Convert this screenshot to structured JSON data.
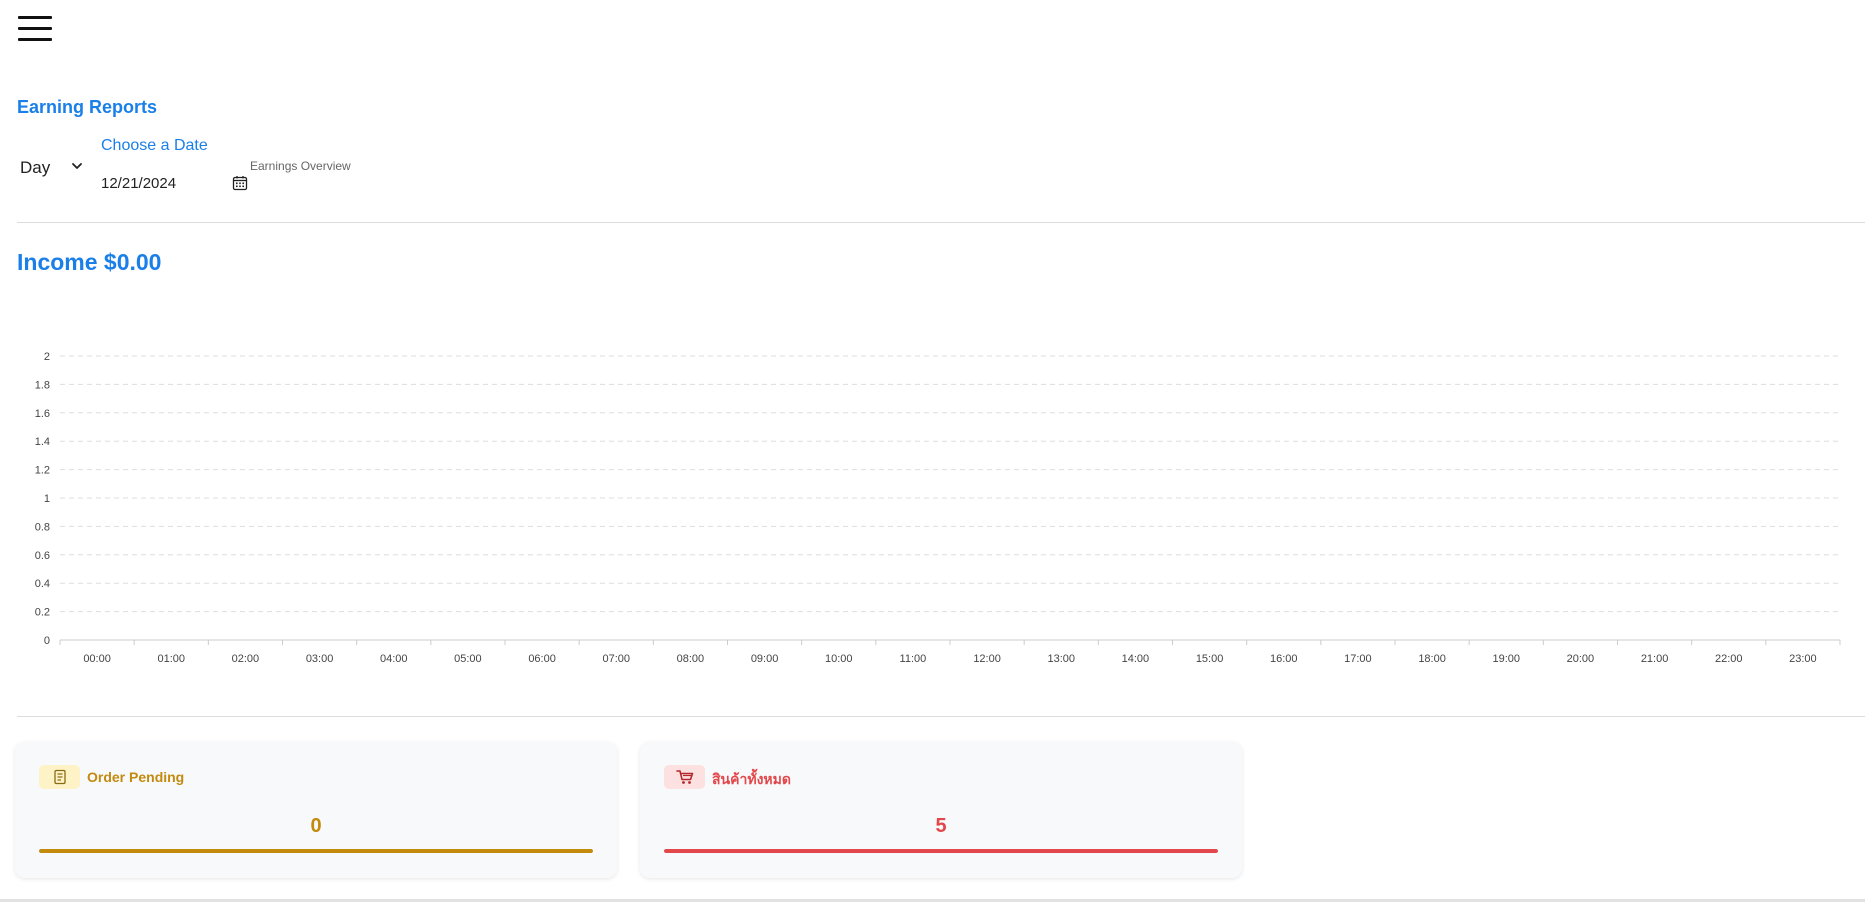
{
  "header": {
    "menu_icon": "hamburger-menu-icon"
  },
  "report": {
    "title": "Earning Reports",
    "period_select": {
      "value": "Day",
      "icon": "chevron-down-icon"
    },
    "date_picker": {
      "label": "Choose a Date",
      "value": "12/21/2024",
      "icon": "calendar-icon"
    },
    "overview_label": "Earnings Overview"
  },
  "income": {
    "text": "Income $0.00"
  },
  "chart_data": {
    "type": "bar",
    "categories": [
      "00:00",
      "01:00",
      "02:00",
      "03:00",
      "04:00",
      "05:00",
      "06:00",
      "07:00",
      "08:00",
      "09:00",
      "10:00",
      "11:00",
      "12:00",
      "13:00",
      "14:00",
      "15:00",
      "16:00",
      "17:00",
      "18:00",
      "19:00",
      "20:00",
      "21:00",
      "22:00",
      "23:00"
    ],
    "series": [
      {
        "values": [
          0,
          0,
          0,
          0,
          0,
          0,
          0,
          0,
          0,
          0,
          0,
          0,
          0,
          0,
          0,
          0,
          0,
          0,
          0,
          0,
          0,
          0,
          0,
          0
        ]
      }
    ],
    "y_ticks": [
      "0",
      "0.2",
      "0.4",
      "0.6",
      "0.8",
      "1",
      "1.2",
      "1.4",
      "1.6",
      "1.8",
      "2"
    ],
    "ylim": [
      0,
      2
    ],
    "grid": true,
    "grid_style": "dashed horizontal",
    "legend": "none"
  },
  "cards": [
    {
      "title": "Order Pending",
      "value": "0",
      "icon": "order-list-icon",
      "color": "#c38a0e",
      "progress": 1.0
    },
    {
      "title": "สินค้าทั้งหมด",
      "value": "5",
      "icon": "shopping-cart-icon",
      "color": "#e2484b",
      "progress": 1.0
    }
  ]
}
